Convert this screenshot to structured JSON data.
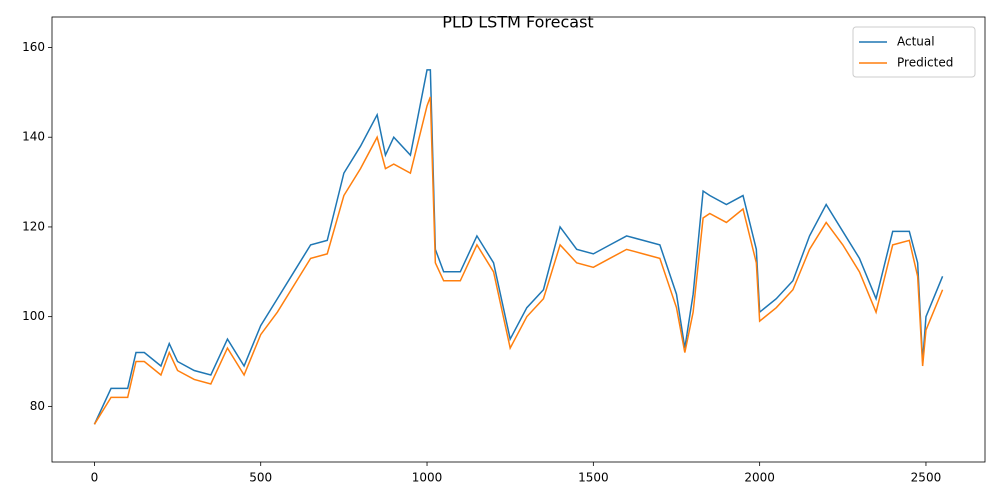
{
  "chart_data": {
    "type": "line",
    "title": "PLD LSTM Forecast",
    "x": [
      0,
      50,
      100,
      125,
      150,
      200,
      225,
      250,
      300,
      350,
      400,
      450,
      500,
      550,
      600,
      650,
      700,
      750,
      800,
      850,
      875,
      900,
      950,
      1000,
      1010,
      1025,
      1050,
      1100,
      1150,
      1200,
      1250,
      1300,
      1350,
      1400,
      1450,
      1500,
      1550,
      1600,
      1650,
      1700,
      1750,
      1775,
      1800,
      1830,
      1850,
      1900,
      1950,
      1990,
      2000,
      2050,
      2100,
      2150,
      2200,
      2250,
      2300,
      2350,
      2400,
      2450,
      2475,
      2490,
      2500,
      2550
    ],
    "series": [
      {
        "name": "Actual",
        "color": "#1f77b4",
        "values": [
          76,
          84,
          84,
          92,
          92,
          89,
          94,
          90,
          88,
          87,
          95,
          89,
          98,
          104,
          110,
          116,
          117,
          132,
          138,
          145,
          136,
          140,
          136,
          155,
          155,
          115,
          110,
          110,
          118,
          112,
          95,
          102,
          106,
          120,
          115,
          114,
          116,
          118,
          117,
          116,
          105,
          93,
          105,
          128,
          127,
          125,
          127,
          115,
          101,
          104,
          108,
          118,
          125,
          119,
          113,
          104,
          119,
          119,
          112,
          90,
          100,
          109
        ]
      },
      {
        "name": "Predicted",
        "color": "#ff7f0e",
        "values": [
          76,
          82,
          82,
          90,
          90,
          87,
          92,
          88,
          86,
          85,
          93,
          87,
          96,
          101,
          107,
          113,
          114,
          127,
          133,
          140,
          133,
          134,
          132,
          147,
          149,
          112,
          108,
          108,
          116,
          110,
          93,
          100,
          104,
          116,
          112,
          111,
          113,
          115,
          114,
          113,
          102,
          92,
          101,
          122,
          123,
          121,
          124,
          112,
          99,
          102,
          106,
          115,
          121,
          116,
          110,
          101,
          116,
          117,
          109,
          89,
          97,
          106
        ]
      }
    ],
    "xlim": [
      -127.5,
      2677.5
    ],
    "ylim": [
      67.6,
      166.8
    ],
    "xticks": [
      0,
      500,
      1000,
      1500,
      2000,
      2500
    ],
    "yticks": [
      80,
      100,
      120,
      140,
      160
    ],
    "grid": false,
    "legend": "upper-right"
  }
}
